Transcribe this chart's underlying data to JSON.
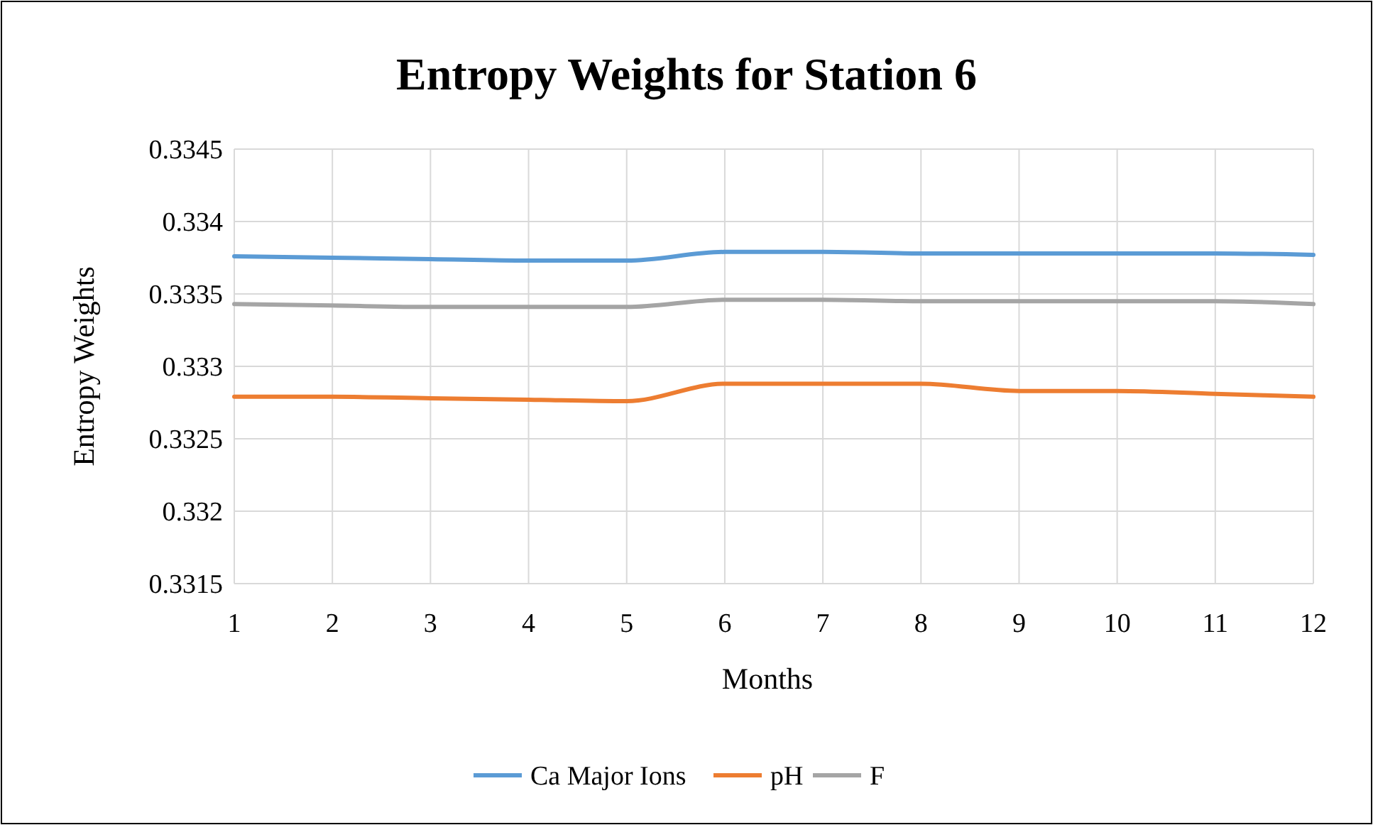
{
  "chart_data": {
    "type": "line",
    "title": "Entropy Weights for Station 6",
    "xlabel": "Months",
    "ylabel": "Entropy Weights",
    "x": [
      1,
      2,
      3,
      4,
      5,
      6,
      7,
      8,
      9,
      10,
      11,
      12
    ],
    "series": [
      {
        "name": "Ca Major Ions",
        "color": "#5b9bd5",
        "values": [
          0.33376,
          0.33375,
          0.33374,
          0.33373,
          0.33373,
          0.33379,
          0.33379,
          0.33378,
          0.33378,
          0.33378,
          0.33378,
          0.33377
        ]
      },
      {
        "name": "pH",
        "color": "#ed7d31",
        "values": [
          0.33279,
          0.33279,
          0.33278,
          0.33277,
          0.33276,
          0.33288,
          0.33288,
          0.33288,
          0.33283,
          0.33283,
          0.33281,
          0.33279
        ]
      },
      {
        "name": "F",
        "color": "#a5a5a5",
        "values": [
          0.33343,
          0.33342,
          0.33341,
          0.33341,
          0.33341,
          0.33346,
          0.33346,
          0.33345,
          0.33345,
          0.33345,
          0.33345,
          0.33343
        ]
      }
    ],
    "xlim": [
      1,
      12
    ],
    "xticks": [
      1,
      2,
      3,
      4,
      5,
      6,
      7,
      8,
      9,
      10,
      11,
      12
    ],
    "ylim": [
      0.3315,
      0.3345
    ],
    "yticks": [
      0.3315,
      0.332,
      0.3325,
      0.333,
      0.3335,
      0.334,
      0.3345
    ],
    "grid": true,
    "legend": "bottom",
    "marker": "none",
    "line_style": "solid"
  }
}
